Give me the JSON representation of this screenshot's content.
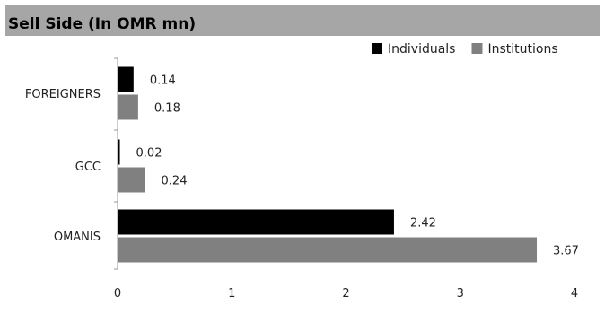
{
  "chart_data": {
    "type": "bar",
    "orientation": "horizontal",
    "title": "Sell Side (In OMR mn)",
    "categories": [
      "FOREIGNERS",
      "GCC",
      "OMANIS"
    ],
    "series": [
      {
        "name": "Individuals",
        "values": [
          0.14,
          0.02,
          2.42
        ],
        "color": "#000000"
      },
      {
        "name": "Institutions",
        "values": [
          0.18,
          0.24,
          3.67
        ],
        "color": "#808080"
      }
    ],
    "value_labels": [
      [
        "0.14",
        "0.02",
        "2.42"
      ],
      [
        "0.18",
        "0.24",
        "3.67"
      ]
    ],
    "xlim": [
      0,
      4
    ],
    "xticks": [
      "0",
      "1",
      "2",
      "3",
      "4"
    ],
    "grid": false,
    "legend": "top-right"
  }
}
